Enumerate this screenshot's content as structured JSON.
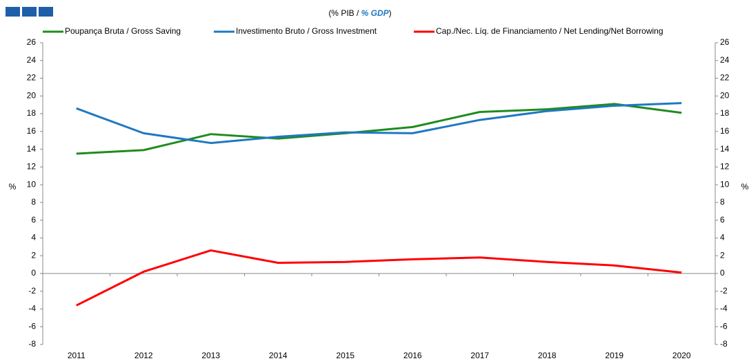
{
  "chart_data": {
    "type": "line",
    "title": [
      "(% PIB / ",
      "% GDP",
      ")"
    ],
    "ylabel": "%",
    "y2label": "%",
    "categories": [
      "2011",
      "2012",
      "2013",
      "2014",
      "2015",
      "2016",
      "2017",
      "2018",
      "2019",
      "2020"
    ],
    "series": [
      {
        "name": "Poupança Bruta / Gross Saving",
        "color": "#1e8c1e",
        "values": [
          13.5,
          13.9,
          15.7,
          15.2,
          15.8,
          16.5,
          18.2,
          18.5,
          19.1,
          18.1
        ]
      },
      {
        "name": "Investimento Bruto / Gross Investment",
        "color": "#1f78c1",
        "values": [
          18.6,
          15.8,
          14.7,
          15.4,
          15.9,
          15.8,
          17.3,
          18.3,
          18.9,
          19.2
        ]
      },
      {
        "name": "Cap./Nec. Líq. de Financiamento / Net Lending/Net Borrowing",
        "color": "#ff0000",
        "values": [
          -3.6,
          0.2,
          2.6,
          1.2,
          1.3,
          1.6,
          1.8,
          1.3,
          0.9,
          0.1
        ]
      }
    ],
    "ylim": [
      -8,
      26
    ],
    "yticks": [
      -8,
      -6,
      -4,
      -2,
      0,
      2,
      4,
      6,
      8,
      10,
      12,
      14,
      16,
      18,
      20,
      22,
      24,
      26
    ],
    "y2lim": [
      -8,
      26
    ],
    "y2ticks": [
      -8,
      -6,
      -4,
      -2,
      0,
      2,
      4,
      6,
      8,
      10,
      12,
      14,
      16,
      18,
      20,
      22,
      24,
      26
    ],
    "grid": false
  }
}
